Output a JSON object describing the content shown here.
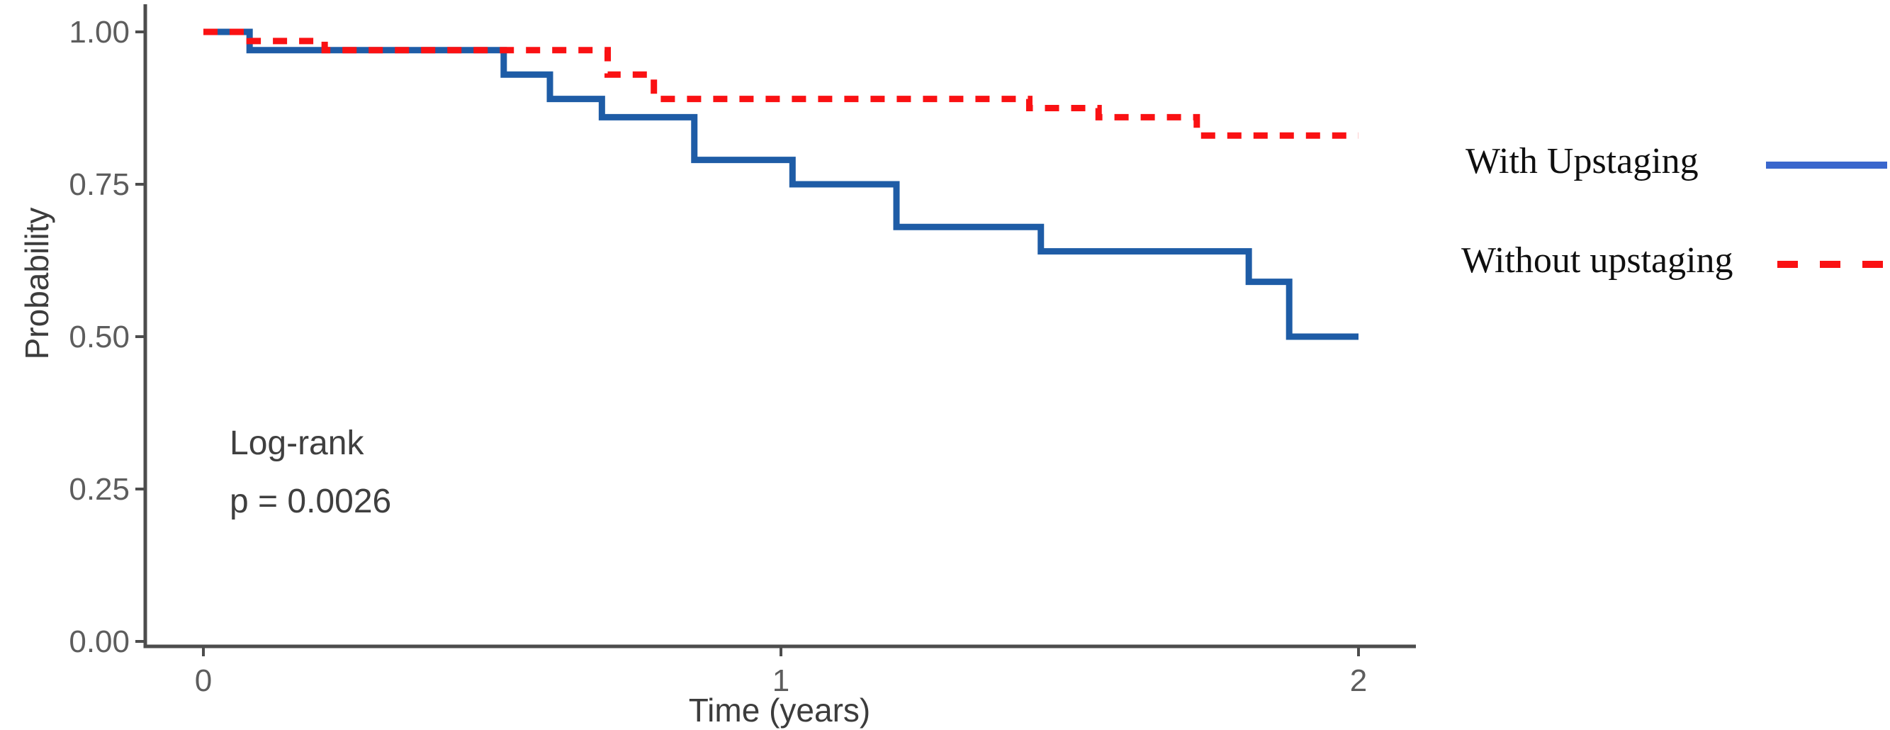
{
  "figure": {
    "background_color": "#ffffff",
    "axis_color": "#4d4d4d",
    "tick_label_color": "#5d5d5d"
  },
  "chart_data": {
    "type": "line",
    "subtype": "kaplan_meier_step",
    "title": "",
    "xlabel": "Time (years)",
    "ylabel": "Probability",
    "xlim": [
      0,
      2
    ],
    "ylim": [
      0,
      1
    ],
    "xticks": [
      "0",
      "1",
      "2"
    ],
    "yticks": [
      "0.00",
      "0.25",
      "0.50",
      "0.75",
      "1.00"
    ],
    "grid": false,
    "legend_position": "right-outside",
    "annotation": {
      "line1": "Log-rank",
      "line2": "p = 0.0026"
    },
    "series": [
      {
        "name": "With Upstaging",
        "style": "solid",
        "color": "#1e5ca6",
        "legend_color": "#3a67cd",
        "x_end": 2.0,
        "steps": [
          [
            0.0,
            1.0
          ],
          [
            0.08,
            0.97
          ],
          [
            0.52,
            0.93
          ],
          [
            0.6,
            0.89
          ],
          [
            0.69,
            0.86
          ],
          [
            0.85,
            0.79
          ],
          [
            1.02,
            0.75
          ],
          [
            1.2,
            0.68
          ],
          [
            1.45,
            0.64
          ],
          [
            1.81,
            0.59
          ],
          [
            1.88,
            0.5
          ]
        ]
      },
      {
        "name": "Without upstaging",
        "style": "dashed",
        "color": "#fa1113",
        "legend_color": "#fa1113",
        "x_end": 2.0,
        "steps": [
          [
            0.0,
            1.0
          ],
          [
            0.08,
            0.985
          ],
          [
            0.21,
            0.97
          ],
          [
            0.7,
            0.93
          ],
          [
            0.78,
            0.89
          ],
          [
            1.43,
            0.875
          ],
          [
            1.55,
            0.86
          ],
          [
            1.72,
            0.83
          ]
        ]
      }
    ]
  }
}
